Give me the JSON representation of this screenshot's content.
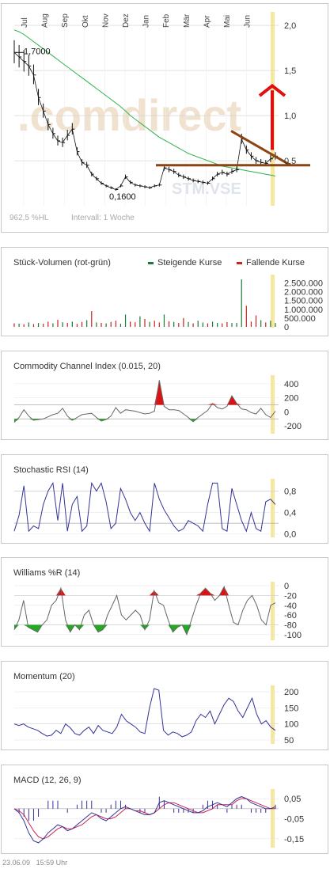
{
  "colors": {
    "price": "#111111",
    "ma": "#2db34a",
    "triangle": "#8b4513",
    "arrow": "#e01010",
    "marker": "#f5e6a0",
    "up": "#1a7a3a",
    "down": "#cc2222",
    "osc": "#333399",
    "grid": "#cfcfcf",
    "area_pos": "#dd1111",
    "area_neg": "#22aa22",
    "macd": "#333399",
    "signal": "#cc2255"
  },
  "main": {
    "x_labels": [
      "Jul",
      "Aug",
      "Sep",
      "Okt",
      "Nov",
      "Dez",
      "Jan",
      "Feb",
      "Mär",
      "Apr",
      "Mai",
      "Jun"
    ],
    "y_labels": [
      "2,0",
      "1,5",
      "1,0",
      "0,5"
    ],
    "high_label": "1,7000",
    "low_label": "0,1600",
    "watermark": ".comdirect",
    "symbol_watermark": "STM.VSE",
    "info_left": "962,5 %HL",
    "info_right": "Intervall: 1 Woche"
  },
  "volume": {
    "title": "Stück-Volumen (rot-grün)",
    "legend_up": "Steigende Kurse",
    "legend_down": "Fallende Kurse",
    "y_labels": [
      "2.500.000",
      "2.000.000",
      "1.500.000",
      "1.000.000",
      "500.000",
      "0"
    ]
  },
  "cci": {
    "title": "Commodity Channel Index (0.015, 20)",
    "y_labels": [
      "400",
      "200",
      "0",
      "-200"
    ]
  },
  "srsi": {
    "title": "Stochastic RSI (14)",
    "y_labels": [
      "0,8",
      "0,4",
      "0,0"
    ]
  },
  "wr": {
    "title": "Williams %R (14)",
    "y_labels": [
      "0",
      "-20",
      "-40",
      "-60",
      "-80",
      "-100"
    ]
  },
  "mom": {
    "title": "Momentum (20)",
    "y_labels": [
      "200",
      "150",
      "100",
      "50"
    ]
  },
  "macd": {
    "title": "MACD (12, 26, 9)",
    "y_labels": [
      "0,05",
      "-0,05",
      "-0,15"
    ]
  },
  "footer": {
    "date": "23.06.09",
    "time": "15:59 Uhr"
  },
  "chart_data": [
    {
      "type": "line",
      "name": "price",
      "ylim": [
        0,
        2.15
      ],
      "close": [
        1.7,
        1.65,
        1.6,
        1.55,
        1.45,
        1.2,
        1.05,
        0.9,
        0.8,
        0.72,
        0.7,
        0.78,
        0.85,
        0.6,
        0.48,
        0.45,
        0.35,
        0.3,
        0.25,
        0.22,
        0.2,
        0.18,
        0.22,
        0.32,
        0.26,
        0.23,
        0.22,
        0.21,
        0.2,
        0.22,
        0.23,
        0.42,
        0.4,
        0.38,
        0.34,
        0.32,
        0.3,
        0.28,
        0.27,
        0.26,
        0.25,
        0.3,
        0.35,
        0.37,
        0.35,
        0.38,
        0.4,
        0.74,
        0.62,
        0.55,
        0.5,
        0.48,
        0.47,
        0.52,
        0.55
      ],
      "ma": [
        1.95,
        1.93,
        1.9,
        1.86,
        1.82,
        1.78,
        1.74,
        1.7,
        1.66,
        1.62,
        1.58,
        1.54,
        1.5,
        1.46,
        1.42,
        1.38,
        1.34,
        1.3,
        1.26,
        1.22,
        1.18,
        1.14,
        1.1,
        1.05,
        1.0,
        0.96,
        0.92,
        0.88,
        0.84,
        0.8,
        0.76,
        0.73,
        0.7,
        0.67,
        0.64,
        0.61,
        0.58,
        0.56,
        0.54,
        0.52,
        0.5,
        0.48,
        0.46,
        0.44,
        0.43,
        0.42,
        0.41,
        0.4,
        0.39,
        0.38,
        0.37,
        0.36,
        0.35,
        0.34,
        0.33
      ],
      "high": 1.7,
      "low": 0.16
    },
    {
      "type": "bar",
      "name": "volume",
      "ylim": [
        0,
        2700000
      ],
      "values": [
        200000,
        180000,
        150000,
        250000,
        160000,
        220000,
        180000,
        300000,
        200000,
        400000,
        260000,
        230000,
        300000,
        170000,
        280000,
        380000,
        900000,
        250000,
        230000,
        200000,
        280000,
        350000,
        180000,
        700000,
        300000,
        260000,
        600000,
        450000,
        280000,
        350000,
        250000,
        700000,
        320000,
        280000,
        220000,
        500000,
        280000,
        200000,
        350000,
        250000,
        200000,
        300000,
        230000,
        200000,
        270000,
        220000,
        230000,
        2700000,
        1200000,
        300000,
        650000,
        380000,
        250000,
        350000,
        220000
      ],
      "up": [
        0,
        1,
        0,
        1,
        0,
        1,
        0,
        0,
        1,
        0,
        1,
        0,
        1,
        0,
        0,
        1,
        0,
        1,
        0,
        1,
        0,
        0,
        1,
        1,
        0,
        0,
        1,
        0,
        1,
        0,
        0,
        1,
        0,
        1,
        0,
        0,
        1,
        0,
        1,
        1,
        0,
        1,
        1,
        0,
        0,
        1,
        1,
        1,
        0,
        0,
        0,
        1,
        0,
        1,
        1
      ]
    },
    {
      "type": "area",
      "name": "cci",
      "ylim": [
        -300,
        500
      ],
      "values": [
        -150,
        -80,
        30,
        -60,
        -120,
        -110,
        -100,
        -70,
        -40,
        -20,
        50,
        -60,
        -120,
        -80,
        -40,
        -30,
        -20,
        -80,
        -130,
        -110,
        -60,
        60,
        -20,
        30,
        20,
        10,
        -10,
        -30,
        -20,
        10,
        450,
        80,
        30,
        30,
        20,
        -30,
        -80,
        -140,
        -80,
        -30,
        20,
        120,
        60,
        40,
        80,
        230,
        120,
        40,
        30,
        -10,
        -30,
        50,
        -40,
        -80,
        10
      ],
      "levels": [
        100,
        -100
      ]
    },
    {
      "type": "line",
      "name": "stochastic_rsi",
      "ylim": [
        -0.05,
        1.0
      ],
      "values": [
        0.05,
        0.35,
        0.9,
        0.05,
        0.15,
        0.1,
        0.55,
        0.8,
        0.95,
        0.25,
        0.95,
        0.05,
        0.55,
        0.7,
        0.05,
        0.15,
        0.95,
        0.8,
        0.95,
        0.6,
        0.1,
        0.2,
        0.85,
        0.65,
        0.4,
        0.25,
        0.4,
        0.2,
        0.05,
        0.95,
        0.65,
        0.45,
        0.3,
        0.15,
        0.05,
        0.1,
        0.25,
        0.2,
        0.15,
        0.05,
        0.55,
        0.95,
        0.95,
        0.1,
        0.05,
        0.85,
        0.55,
        0.25,
        0.05,
        0.4,
        0.1,
        0.05,
        0.6,
        0.65,
        0.55
      ],
      "levels": [
        0.8,
        0.2
      ]
    },
    {
      "type": "area",
      "name": "williams_r",
      "ylim": [
        -110,
        5
      ],
      "values": [
        -90,
        -70,
        -30,
        -85,
        -90,
        -95,
        -80,
        -70,
        -40,
        -30,
        -5,
        -70,
        -95,
        -80,
        -90,
        -60,
        -50,
        -80,
        -95,
        -90,
        -60,
        -40,
        -20,
        -60,
        -70,
        -60,
        -50,
        -60,
        -90,
        -70,
        -10,
        -35,
        -40,
        -70,
        -95,
        -85,
        -80,
        -100,
        -70,
        -40,
        -15,
        -5,
        -15,
        -30,
        -20,
        -2,
        -40,
        -75,
        -80,
        -50,
        -30,
        -20,
        -40,
        -70,
        -80,
        -40,
        -35
      ],
      "levels": [
        -20,
        -80
      ]
    },
    {
      "type": "line",
      "name": "momentum",
      "ylim": [
        40,
        215
      ],
      "values": [
        100,
        95,
        100,
        90,
        85,
        80,
        70,
        62,
        65,
        80,
        70,
        100,
        88,
        70,
        65,
        80,
        90,
        70,
        95,
        80,
        75,
        70,
        90,
        130,
        110,
        100,
        90,
        75,
        70,
        150,
        210,
        205,
        80,
        65,
        75,
        70,
        60,
        65,
        75,
        110,
        130,
        120,
        140,
        100,
        130,
        160,
        180,
        170,
        140,
        120,
        150,
        180,
        130,
        100,
        110,
        90,
        80
      ],
      "levels": [
        100
      ]
    },
    {
      "type": "line",
      "name": "macd",
      "ylim": [
        -0.19,
        0.09
      ],
      "macd": [
        0.0,
        -0.02,
        -0.06,
        -0.12,
        -0.16,
        -0.17,
        -0.15,
        -0.12,
        -0.1,
        -0.08,
        -0.09,
        -0.11,
        -0.1,
        -0.08,
        -0.06,
        -0.04,
        -0.02,
        -0.03,
        -0.05,
        -0.06,
        -0.04,
        -0.02,
        0.0,
        0.01,
        0.0,
        -0.01,
        -0.02,
        -0.03,
        -0.03,
        -0.02,
        0.03,
        0.04,
        0.03,
        0.02,
        0.01,
        0.0,
        -0.01,
        -0.02,
        -0.02,
        -0.01,
        0.01,
        0.02,
        0.03,
        0.02,
        0.01,
        0.03,
        0.05,
        0.06,
        0.05,
        0.03,
        0.02,
        0.01,
        0.0,
        0.0,
        0.01
      ],
      "signal": [
        0.0,
        -0.01,
        -0.03,
        -0.07,
        -0.11,
        -0.14,
        -0.15,
        -0.14,
        -0.12,
        -0.1,
        -0.09,
        -0.1,
        -0.1,
        -0.09,
        -0.08,
        -0.06,
        -0.04,
        -0.03,
        -0.04,
        -0.05,
        -0.05,
        -0.04,
        -0.02,
        0.0,
        0.0,
        -0.01,
        -0.01,
        -0.02,
        -0.03,
        -0.02,
        0.0,
        0.02,
        0.03,
        0.03,
        0.02,
        0.01,
        0.0,
        -0.01,
        -0.02,
        -0.02,
        -0.01,
        0.0,
        0.02,
        0.02,
        0.02,
        0.02,
        0.04,
        0.05,
        0.05,
        0.04,
        0.03,
        0.02,
        0.01,
        0.0,
        0.0
      ],
      "histogram": [
        0.0,
        -0.01,
        -0.02,
        -0.03,
        -0.03,
        -0.02,
        0.0,
        0.02,
        0.02,
        0.02,
        0.0,
        -0.01,
        0.0,
        0.01,
        0.02,
        0.02,
        0.02,
        0.0,
        -0.01,
        -0.01,
        0.01,
        0.02,
        0.02,
        0.01,
        0.0,
        0.0,
        -0.01,
        -0.01,
        0.0,
        0.0,
        0.03,
        0.02,
        0.0,
        -0.01,
        -0.01,
        -0.01,
        -0.01,
        -0.01,
        0.0,
        0.01,
        0.02,
        0.02,
        0.01,
        0.0,
        -0.01,
        0.01,
        0.01,
        0.01,
        0.0,
        -0.01,
        -0.01,
        -0.01,
        -0.01,
        0.0,
        0.01
      ]
    }
  ]
}
